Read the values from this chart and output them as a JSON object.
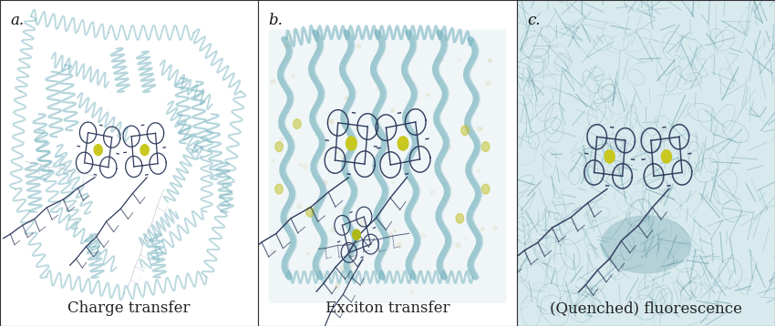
{
  "panels": [
    {
      "label": "a.",
      "caption": "Charge transfer",
      "bg_color": "#ffffff"
    },
    {
      "label": "b.",
      "caption": "Exciton transfer",
      "bg_color": "#ffffff"
    },
    {
      "label": "c.",
      "caption": "(Quenched) fluorescence",
      "bg_color": "#deeef0"
    }
  ],
  "figure_bg": "#ffffff",
  "border_color": "#333333",
  "label_fontsize": 12,
  "caption_fontsize": 12,
  "protein_color": "#7ab5c0",
  "protein_color2": "#5a9aaa",
  "chl_color": "#2e3a5c",
  "mg_color": "#c8c820",
  "caption_color": "#222222",
  "fig_width": 8.5,
  "fig_height": 3.58
}
